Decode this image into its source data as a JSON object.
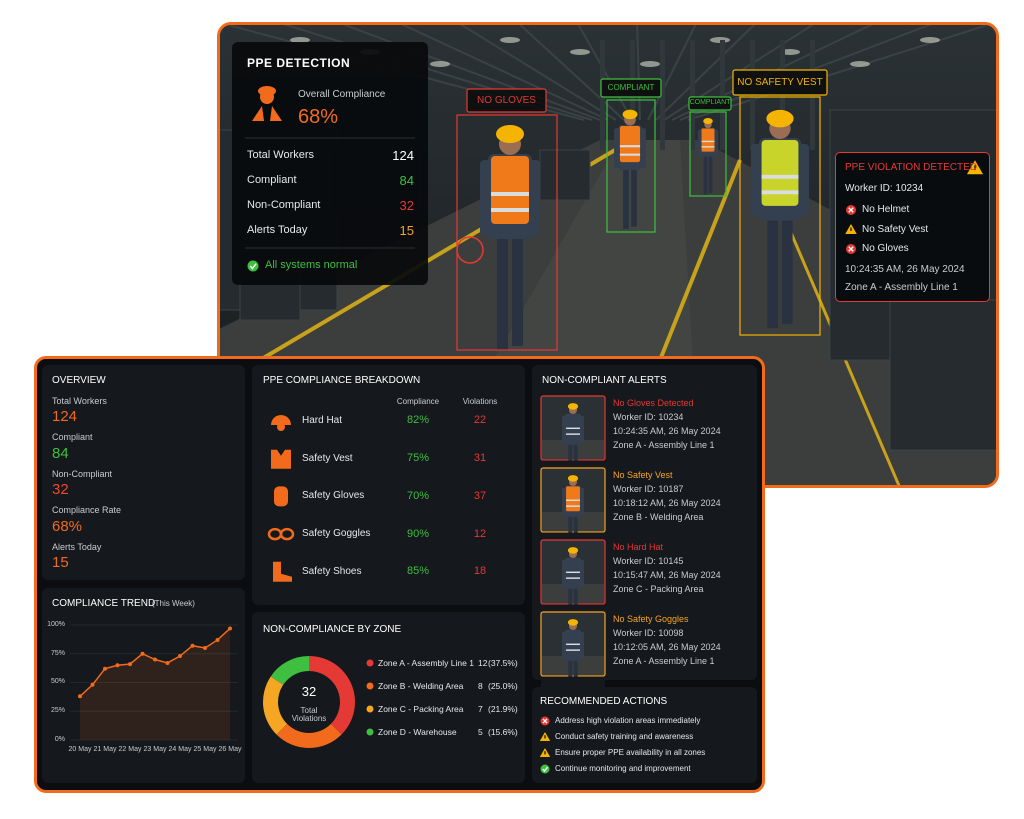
{
  "detection": {
    "title": "PPE DETECTION",
    "overall_label": "Overall Compliance",
    "overall_value": "68%",
    "rows": [
      {
        "label": "Total Workers",
        "value": "124",
        "color": "#ffffff"
      },
      {
        "label": "Compliant",
        "value": "84",
        "color": "#3fbf3f"
      },
      {
        "label": "Non-Compliant",
        "value": "32",
        "color": "#e53935"
      },
      {
        "label": "Alerts Today",
        "value": "15",
        "color": "#f5a623"
      }
    ],
    "status": "All systems normal"
  },
  "detections": [
    {
      "label": "NO GLOVES",
      "color": "#e53935"
    },
    {
      "label": "COMPLIANT",
      "color": "#3fbf3f"
    },
    {
      "label": "COMPLIANT",
      "color": "#3fbf3f"
    },
    {
      "label": "NO SAFETY VEST",
      "color": "#f5b400"
    }
  ],
  "violation": {
    "title": "PPE VIOLATION DETECTED",
    "worker": "Worker ID: 10234",
    "items": [
      {
        "text": "No Helmet",
        "level": "error"
      },
      {
        "text": "No Safety Vest",
        "level": "warning"
      },
      {
        "text": "No Gloves",
        "level": "error"
      }
    ],
    "time": "10:24:35 AM, 26 May 2024",
    "zone": "Zone A - Assembly Line 1"
  },
  "overview": {
    "title": "OVERVIEW",
    "items": [
      {
        "label": "Total Workers",
        "value": "124",
        "color": "#f26b1d"
      },
      {
        "label": "Compliant",
        "value": "84",
        "color": "#3fbf3f"
      },
      {
        "label": "Non-Compliant",
        "value": "32",
        "color": "#f04a2a"
      },
      {
        "label": "Compliance Rate",
        "value": "68%",
        "color": "#f26b1d"
      },
      {
        "label": "Alerts Today",
        "value": "15",
        "color": "#f26b1d"
      }
    ]
  },
  "breakdown": {
    "title": "PPE COMPLIANCE BREAKDOWN",
    "headers": [
      "Compliance",
      "Violations"
    ],
    "rows": [
      {
        "name": "Hard Hat",
        "compliance": "82%",
        "violations": "22"
      },
      {
        "name": "Safety Vest",
        "compliance": "75%",
        "violations": "31"
      },
      {
        "name": "Safety Gloves",
        "compliance": "70%",
        "violations": "37"
      },
      {
        "name": "Safety Goggles",
        "compliance": "90%",
        "violations": "12"
      },
      {
        "name": "Safety Shoes",
        "compliance": "85%",
        "violations": "18"
      }
    ]
  },
  "trend": {
    "type": "line",
    "title": "COMPLIANCE TREND",
    "subtitle": "(This Week)",
    "categories": [
      "20 May",
      null,
      "21 May",
      null,
      "22 May",
      null,
      "23 May",
      null,
      "24 May",
      null,
      "25 May",
      null,
      "26 May"
    ],
    "values": [
      38,
      48,
      62,
      65,
      66,
      75,
      70,
      67,
      73,
      82,
      80,
      87,
      97
    ],
    "ylim": [
      0,
      100
    ],
    "yticks": [
      {
        "value": 0,
        "label": "0%"
      },
      {
        "value": 25,
        "label": "25%"
      },
      {
        "value": 50,
        "label": "50%"
      },
      {
        "value": 75,
        "label": "75%"
      },
      {
        "value": 100,
        "label": "100%"
      }
    ],
    "color": "#f26b1d"
  },
  "zones": {
    "title": "NON-COMPLIANCE BY ZONE",
    "total": "32",
    "total_label": "Total Violations",
    "items": [
      {
        "name": "Zone A - Assembly Line 1",
        "count": 12,
        "share": "(37.5%)",
        "color": "#e53935"
      },
      {
        "name": "Zone B - Welding Area",
        "count": 8,
        "share": "(25.0%)",
        "color": "#f26b1d"
      },
      {
        "name": "Zone C - Packing Area",
        "count": 7,
        "share": "(21.9%)",
        "color": "#f5a623"
      },
      {
        "name": "Zone D - Warehouse",
        "count": 5,
        "share": "(15.6%)",
        "color": "#3fbf3f"
      }
    ]
  },
  "alerts": {
    "title": "NON-COMPLIANT ALERTS",
    "items": [
      {
        "title": "No Gloves Detected",
        "color": "#e53935",
        "worker": "Worker ID: 10234",
        "time": "10:24:35 AM, 26 May 2024",
        "zone": "Zone A - Assembly Line 1"
      },
      {
        "title": "No Safety Vest",
        "color": "#f5a623",
        "worker": "Worker ID: 10187",
        "time": "10:18:12 AM, 26 May 2024",
        "zone": "Zone B - Welding Area"
      },
      {
        "title": "No Hard Hat",
        "color": "#e53935",
        "worker": "Worker ID: 10145",
        "time": "10:15:47 AM, 26 May 2024",
        "zone": "Zone C - Packing Area"
      },
      {
        "title": "No Safety Goggles",
        "color": "#f5a623",
        "worker": "Worker ID: 10098",
        "time": "10:12:05 AM, 26 May 2024",
        "zone": "Zone A - Assembly Line 1"
      }
    ]
  },
  "actions": {
    "title": "RECOMMENDED ACTIONS",
    "items": [
      {
        "text": "Address high violation areas immediately",
        "level": "error"
      },
      {
        "text": "Conduct safety training and awareness",
        "level": "warning"
      },
      {
        "text": "Ensure proper PPE availability in all zones",
        "level": "warning"
      },
      {
        "text": "Continue monitoring and improvement",
        "level": "ok"
      }
    ]
  }
}
